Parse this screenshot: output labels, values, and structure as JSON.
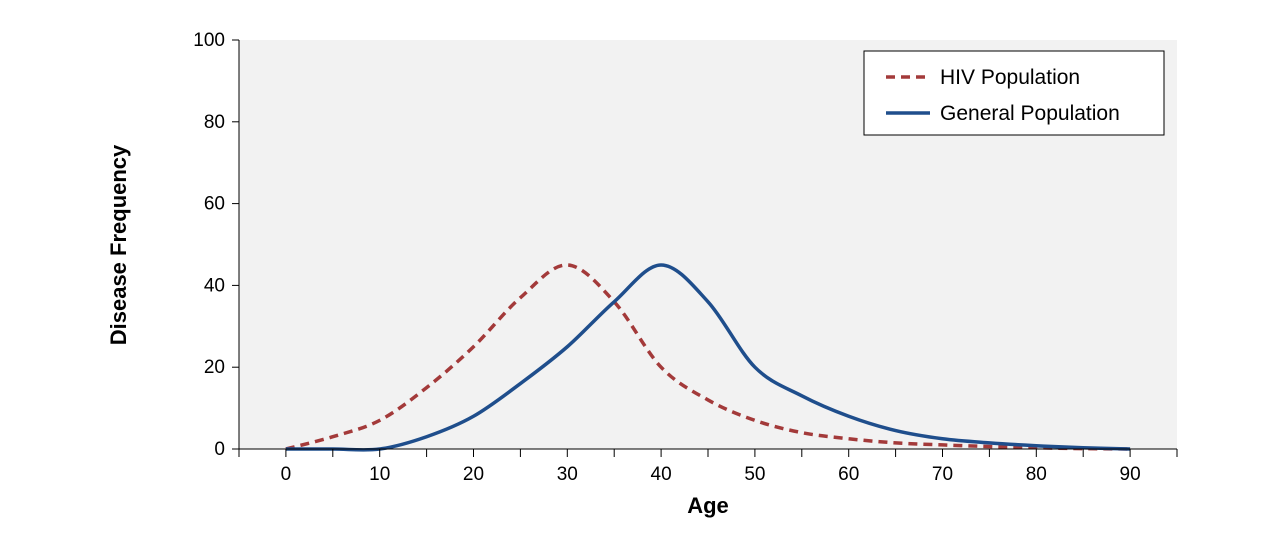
{
  "chart_data": {
    "type": "line",
    "title": "",
    "xlabel": "Age",
    "ylabel": "Disease Frequency",
    "xlim": [
      -5,
      95
    ],
    "ylim": [
      0,
      100
    ],
    "xticks": [
      0,
      10,
      20,
      30,
      40,
      50,
      60,
      70,
      80,
      90
    ],
    "yticks": [
      0,
      20,
      40,
      60,
      80,
      100
    ],
    "grid": false,
    "legend_position": "top-right",
    "plot_background": "#f2f2f2",
    "series": [
      {
        "name": "HIV Population",
        "color": "#a33a3a",
        "style": "dashed",
        "x": [
          0,
          5,
          10,
          15,
          20,
          25,
          30,
          35,
          40,
          45,
          50,
          55,
          60,
          65,
          70,
          75,
          80,
          85,
          90
        ],
        "y": [
          0,
          3,
          7,
          15,
          25,
          37,
          45,
          36,
          20,
          12,
          7,
          4,
          2.5,
          1.5,
          1,
          0.6,
          0.3,
          0.1,
          0
        ]
      },
      {
        "name": "General Population",
        "color": "#1f4e8c",
        "style": "solid",
        "x": [
          0,
          5,
          10,
          15,
          20,
          25,
          30,
          35,
          40,
          45,
          50,
          55,
          60,
          65,
          70,
          75,
          80,
          85,
          90
        ],
        "y": [
          0,
          0,
          0,
          3,
          8,
          16,
          25,
          36,
          45,
          36,
          20,
          13,
          8,
          4.5,
          2.5,
          1.5,
          0.8,
          0.3,
          0
        ]
      }
    ]
  }
}
